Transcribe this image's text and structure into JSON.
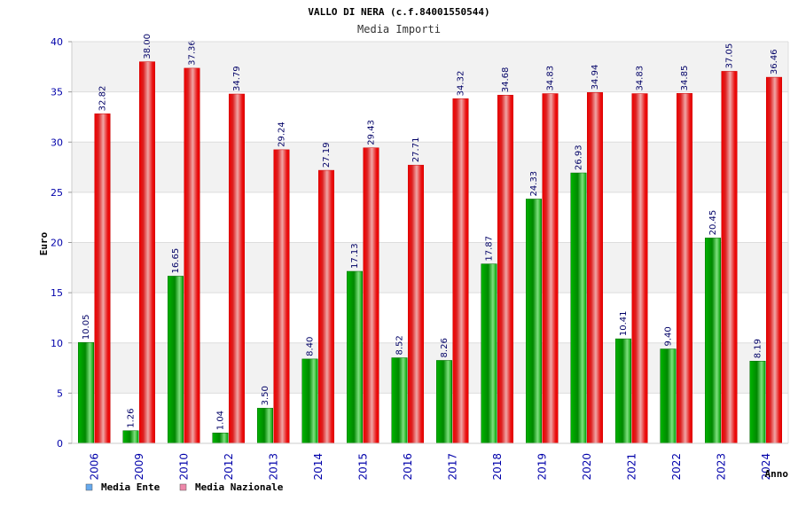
{
  "chart_data": {
    "type": "bar",
    "title": "VALLO DI NERA (c.f.84001550544)",
    "subtitle": "Media Importi",
    "xlabel": "Anno",
    "ylabel": "Euro",
    "ylim": [
      0,
      40
    ],
    "yticks": [
      "0",
      "5",
      "10",
      "15",
      "20",
      "25",
      "30",
      "35",
      "40"
    ],
    "grid": true,
    "legend_position": "bottom-left",
    "categories": [
      "2006",
      "2009",
      "2010",
      "2012",
      "2013",
      "2014",
      "2015",
      "2016",
      "2017",
      "2018",
      "2019",
      "2020",
      "2021",
      "2022",
      "2023",
      "2024"
    ],
    "series": [
      {
        "name": "Media Ente",
        "color": "#00aa00",
        "legend_color": "#66aaee",
        "values": [
          10.05,
          1.26,
          16.65,
          1.04,
          3.5,
          8.4,
          17.13,
          8.52,
          8.26,
          17.87,
          24.33,
          26.93,
          10.41,
          9.4,
          20.45,
          8.19
        ],
        "labels": [
          "10.05",
          "1.26",
          "16.65",
          "1.04",
          "3.50",
          "8.40",
          "17.13",
          "8.52",
          "8.26",
          "17.87",
          "24.33",
          "26.93",
          "10.41",
          "9.40",
          "20.45",
          "8.19"
        ]
      },
      {
        "name": "Media Nazionale",
        "color": "#ee1111",
        "legend_color": "#ee88aa",
        "values": [
          32.82,
          38.0,
          37.36,
          34.79,
          29.24,
          27.19,
          29.43,
          27.71,
          34.32,
          34.68,
          34.83,
          34.94,
          34.83,
          34.85,
          37.05,
          36.46
        ],
        "labels": [
          "32.82",
          "38.00",
          "37.36",
          "34.79",
          "29.24",
          "27.19",
          "29.43",
          "27.71",
          "34.32",
          "34.68",
          "34.83",
          "34.94",
          "34.83",
          "34.85",
          "37.05",
          "36.46"
        ]
      }
    ]
  }
}
